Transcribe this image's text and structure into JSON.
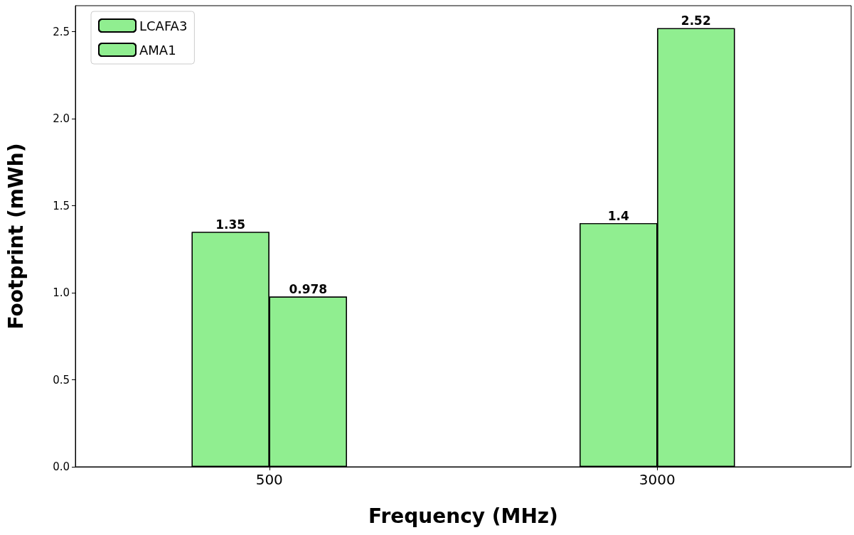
{
  "chart_data": {
    "type": "bar",
    "xlabel": "Frequency (MHz)",
    "ylabel": "Footprint (mWh)",
    "categories": [
      "500",
      "3000"
    ],
    "series": [
      {
        "name": "LCAFA3",
        "color": "#90ee90",
        "values": [
          1.35,
          1.4
        ]
      },
      {
        "name": "AMA1",
        "color": "#90ee90",
        "values": [
          0.978,
          2.52
        ]
      }
    ],
    "ylim": [
      0,
      2.65
    ],
    "yticks": [
      {
        "value": 0,
        "label": "0.0"
      },
      0.5,
      {
        "value": 1,
        "label": "1.0"
      },
      1.5,
      {
        "value": 2,
        "label": "2.0"
      },
      2.5
    ],
    "data_labels": true,
    "legend": "top left",
    "grid": false
  }
}
